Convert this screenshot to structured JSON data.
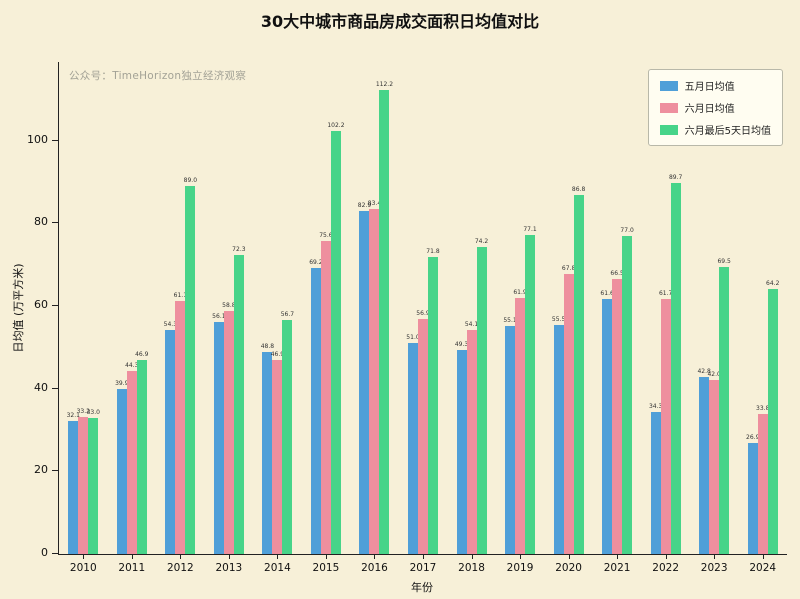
{
  "figure": {
    "title": "30大中城市商品房成交面积日均值对比",
    "watermark": "公众号：TimeHorizon独立经济观察"
  },
  "chart_data": {
    "type": "bar",
    "title": "30大中城市商品房成交面积日均值对比",
    "xlabel": "年份",
    "ylabel": "日均值 (万平方米)",
    "ylim": [
      0,
      119
    ],
    "yticks": [
      0,
      20,
      40,
      60,
      80,
      100
    ],
    "grid": false,
    "legend_position": "upper right",
    "categories": [
      "2010",
      "2011",
      "2012",
      "2013",
      "2014",
      "2015",
      "2016",
      "2017",
      "2018",
      "2019",
      "2020",
      "2021",
      "2022",
      "2023",
      "2024"
    ],
    "series": [
      {
        "name": "五月日均值",
        "color": "#4f9fd8",
        "values": [
          32.1,
          39.9,
          54.3,
          56.1,
          48.8,
          69.2,
          82.9,
          51.0,
          49.3,
          55.1,
          55.5,
          61.6,
          34.3,
          42.8,
          26.9
        ]
      },
      {
        "name": "六月日均值",
        "color": "#ee8f9e",
        "values": [
          33.2,
          44.3,
          61.1,
          58.8,
          46.9,
          75.6,
          83.4,
          56.9,
          54.1,
          61.9,
          67.8,
          66.5,
          61.7,
          42.0,
          33.8
        ]
      },
      {
        "name": "六月最后5天日均值",
        "color": "#47d489",
        "values": [
          33.0,
          46.9,
          89.0,
          72.3,
          56.7,
          102.2,
          112.2,
          71.8,
          74.2,
          77.1,
          86.8,
          77.0,
          89.7,
          69.5,
          64.2
        ]
      }
    ]
  }
}
